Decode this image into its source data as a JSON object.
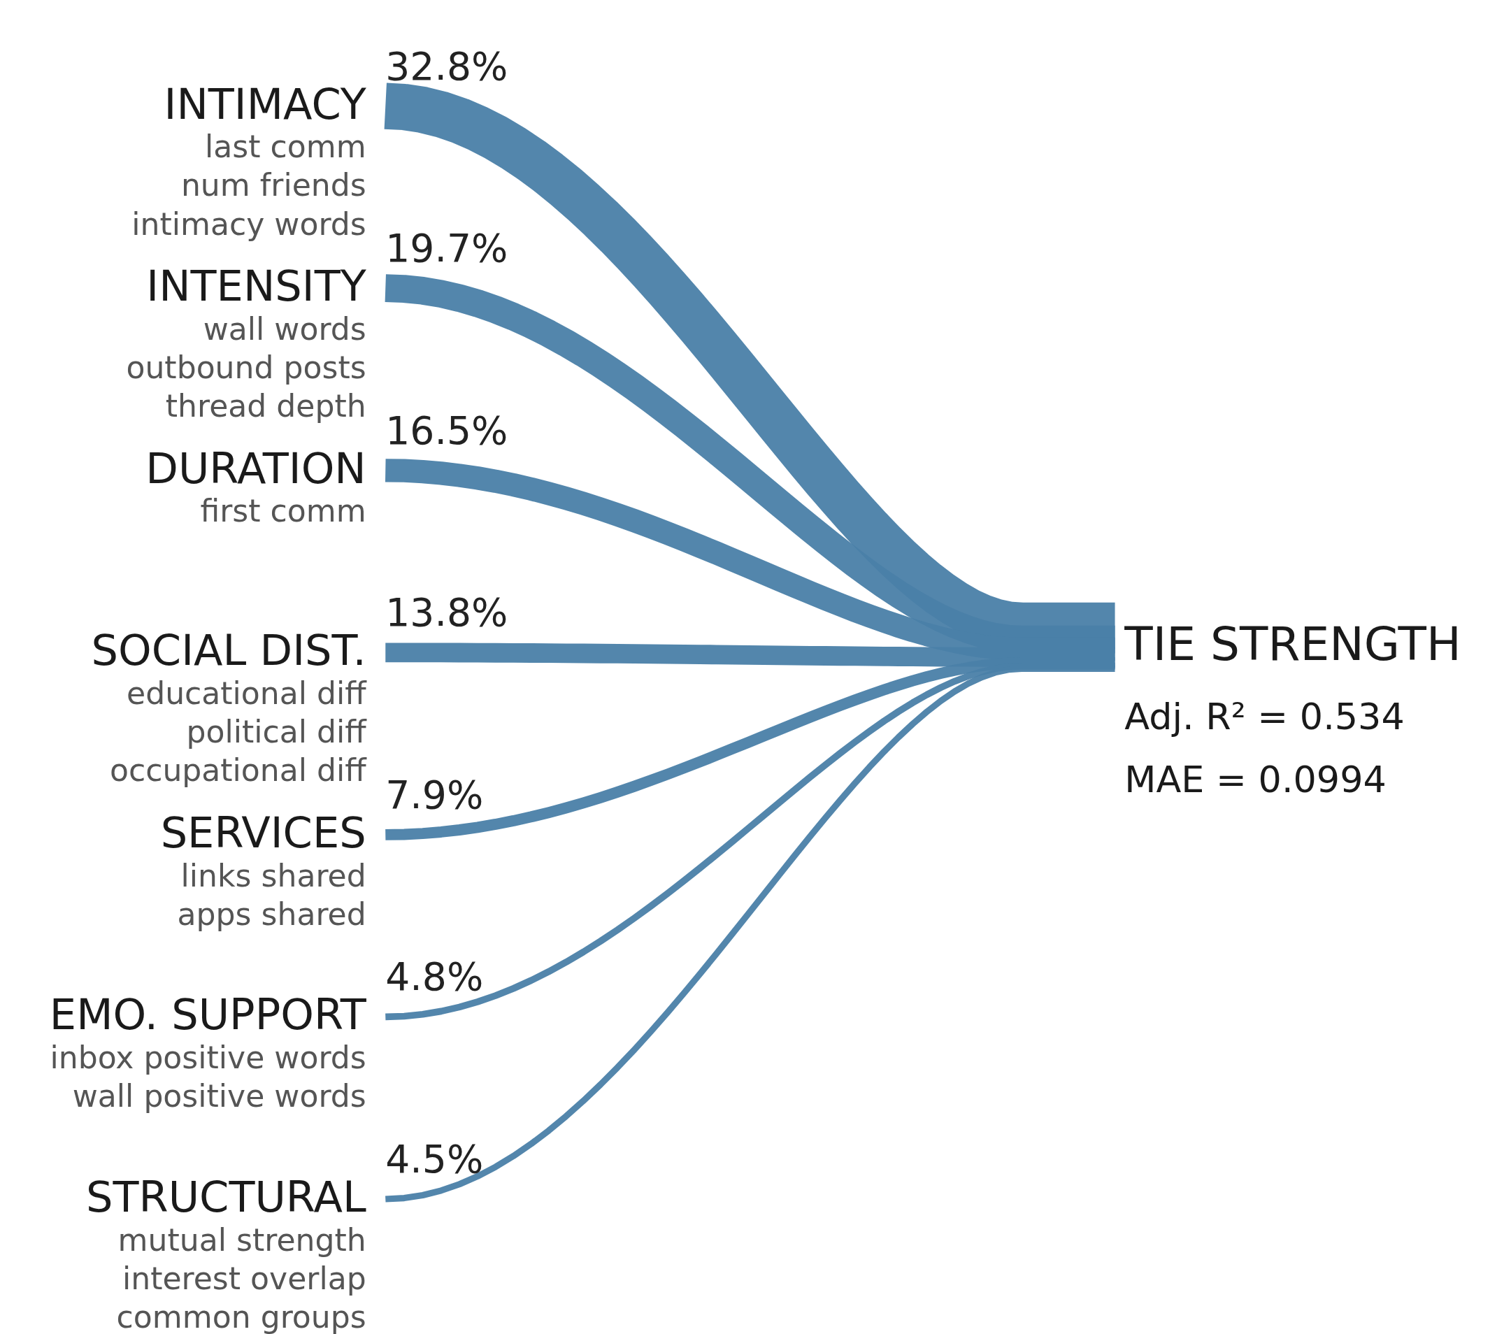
{
  "chart_data": {
    "type": "other",
    "categories": [
      "INTIMACY\nlast comm\nnum friends\nintimacy words",
      "INTENSITY\nwall words\noutbound posts\nthread depth",
      "DURATION\nfirst comm",
      "SOCIAL DIST.\neducational diff\npolitical diff\noccupational diff",
      "SERVICES\nlinks shared\napps shared",
      "EMO. SUPPORT\ninbox positive words\nwall positive words",
      "STRUCTURAL\nmutual strength\ninterest overlap\ncommon groups"
    ],
    "values": [
      32.8,
      19.7,
      16.5,
      13.8,
      7.9,
      4.8,
      4.5
    ],
    "value_labels": [
      "32.8%",
      "19.7%",
      "16.5%",
      "13.8%",
      "7.9%",
      "4.8%",
      "4.5%"
    ],
    "color": "#4a7fa8",
    "annotations": [
      "TIE STRENGTH",
      "Adj. R² = 0.534",
      "MAE = 0.0994"
    ]
  }
}
